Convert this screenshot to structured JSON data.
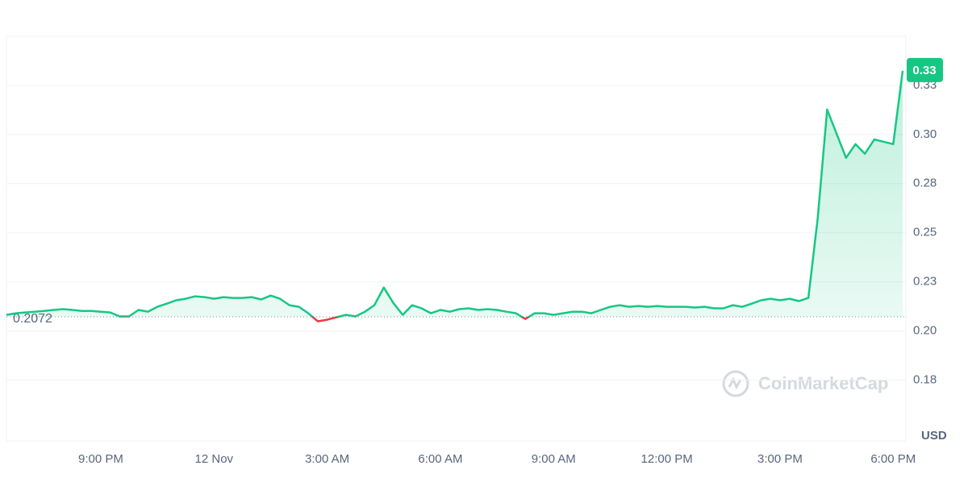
{
  "chart_data": {
    "type": "line",
    "categories": [
      null,
      null,
      null,
      null,
      null,
      null,
      null,
      null,
      null,
      null,
      "9:00 PM",
      null,
      null,
      null,
      null,
      null,
      null,
      null,
      null,
      null,
      null,
      null,
      "12 Nov",
      null,
      null,
      null,
      null,
      null,
      null,
      null,
      null,
      null,
      null,
      null,
      "3:00 AM",
      null,
      null,
      null,
      null,
      null,
      null,
      null,
      null,
      null,
      null,
      null,
      "6:00 AM",
      null,
      null,
      null,
      null,
      null,
      null,
      null,
      null,
      null,
      null,
      null,
      "9:00 AM",
      null,
      null,
      null,
      null,
      null,
      null,
      null,
      null,
      null,
      null,
      null,
      "12:00 PM",
      null,
      null,
      null,
      null,
      null,
      null,
      null,
      null,
      null,
      null,
      null,
      "3:00 PM",
      null,
      null,
      null,
      null,
      null,
      null,
      null,
      null,
      null,
      null,
      null,
      "6:00 PM",
      null
    ],
    "series": [
      {
        "up_color": "#16c784",
        "down_color": "#ea3943",
        "values": [
          0.2082,
          0.209,
          0.2094,
          0.2098,
          0.2102,
          0.2107,
          0.2111,
          0.2107,
          0.2102,
          0.2102,
          0.2098,
          0.2094,
          0.2074,
          0.2074,
          0.2107,
          0.2098,
          0.2123,
          0.2139,
          0.2156,
          0.2164,
          0.2176,
          0.2172,
          0.2164,
          0.2172,
          0.2168,
          0.2168,
          0.2172,
          0.216,
          0.218,
          0.2164,
          0.2131,
          0.2123,
          0.209,
          0.2049,
          0.2057,
          0.207,
          0.2082,
          0.2074,
          0.2098,
          0.2131,
          0.2221,
          0.2143,
          0.2082,
          0.2131,
          0.2115,
          0.209,
          0.2107,
          0.2098,
          0.2111,
          0.2115,
          0.2107,
          0.2111,
          0.2107,
          0.2098,
          0.209,
          0.2061,
          0.209,
          0.209,
          0.2082,
          0.209,
          0.2098,
          0.2098,
          0.209,
          0.2107,
          0.2123,
          0.2131,
          0.2123,
          0.2127,
          0.2123,
          0.2127,
          0.2123,
          0.2123,
          0.2123,
          0.2119,
          0.2123,
          0.2115,
          0.2115,
          0.2131,
          0.2123,
          0.2139,
          0.2156,
          0.2164,
          0.2156,
          0.2164,
          0.2152,
          0.2168,
          0.2574,
          0.3127,
          0.3004,
          0.2881,
          0.2951,
          0.2902,
          0.2975,
          0.2963,
          0.2951,
          0.3324
        ],
        "value_labels": [
          null,
          null,
          null,
          null,
          null,
          null,
          null,
          null,
          null,
          null,
          null,
          null,
          null,
          null,
          null,
          null,
          null,
          null,
          null,
          null,
          null,
          null,
          null,
          null,
          null,
          null,
          null,
          null,
          null,
          null,
          null,
          null,
          null,
          null,
          null,
          null,
          null,
          null,
          null,
          null,
          null,
          null,
          null,
          null,
          null,
          null,
          null,
          null,
          null,
          null,
          null,
          null,
          null,
          null,
          null,
          null,
          null,
          null,
          null,
          null,
          null,
          null,
          null,
          null,
          null,
          null,
          null,
          null,
          null,
          null,
          null,
          null,
          null,
          null,
          null,
          null,
          null,
          null,
          null,
          null,
          null,
          null,
          null,
          null,
          null,
          null,
          null,
          null,
          null,
          null,
          null,
          null,
          null,
          null,
          null,
          "0.33"
        ]
      }
    ],
    "baseline": {
      "value": 0.2072,
      "label": "0.2072"
    },
    "ylim": [
      0.144,
      0.35
    ],
    "yticks": [
      {
        "value": 0.175,
        "label": "0.18"
      },
      {
        "value": 0.2,
        "label": "0.20"
      },
      {
        "value": 0.225,
        "label": "0.23"
      },
      0.25,
      {
        "value": 0.275,
        "label": "0.28"
      },
      {
        "value": 0.3,
        "label": "0.30"
      },
      {
        "value": 0.325,
        "label": "0.33"
      }
    ],
    "y_unit": "USD",
    "watermark": "CoinMarketCap",
    "grid": true
  }
}
